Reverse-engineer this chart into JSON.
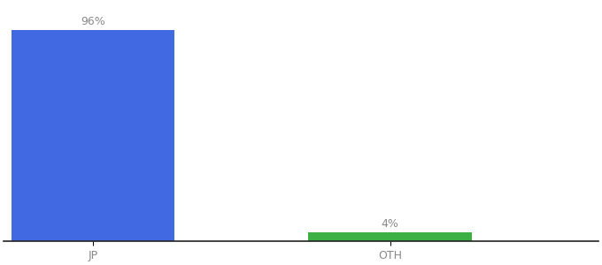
{
  "categories": [
    "JP",
    "OTH"
  ],
  "values": [
    96,
    4
  ],
  "bar_colors": [
    "#4169e1",
    "#3cb043"
  ],
  "bar_labels": [
    "96%",
    "4%"
  ],
  "ylim": [
    0,
    108
  ],
  "background_color": "#ffffff",
  "label_fontsize": 9,
  "tick_fontsize": 9,
  "bar_width": 0.55,
  "xlim": [
    -0.3,
    1.7
  ]
}
